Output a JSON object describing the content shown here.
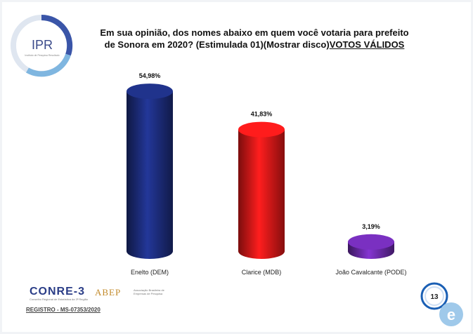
{
  "title_line1": "Em sua opinião, dos nomes abaixo em quem você votaria para prefeito",
  "title_line2_a": "de Sonora em 2020? (Estimulada 01)(Mostrar disco)",
  "title_line2_b": "VOTOS VÁLIDOS",
  "logo": {
    "text": "IPR",
    "sub": "Instituto de Pesquisa Resultado"
  },
  "footer": {
    "conre": "CONRE-3",
    "conre_sub": "Conselho Regional de Estatística da 3ª Região",
    "abep": "ABEP",
    "abep_sub": "Associação Brasileira de Empresas de Pesquisa",
    "registro": "REGISTRO - MS-07353/2020"
  },
  "page_number": "13",
  "chart_data": {
    "type": "bar",
    "title": "Em sua opinião, dos nomes abaixo em quem você votaria para prefeito de Sonora em 2020? (Estimulada 01)(Mostrar disco)VOTOS VÁLIDOS",
    "categories": [
      "Enelto (DEM)",
      "Clarice (MDB)",
      "João Cavalcante (PODE)"
    ],
    "values": [
      54.98,
      41.83,
      3.19
    ],
    "value_labels": [
      "54,98%",
      "41,83%",
      "3,19%"
    ],
    "colors": [
      "#1c2c7a",
      "#e01818",
      "#6a2aa8"
    ],
    "unit": "%",
    "ylim": [
      0,
      60
    ],
    "grid": false,
    "legend": "none"
  }
}
